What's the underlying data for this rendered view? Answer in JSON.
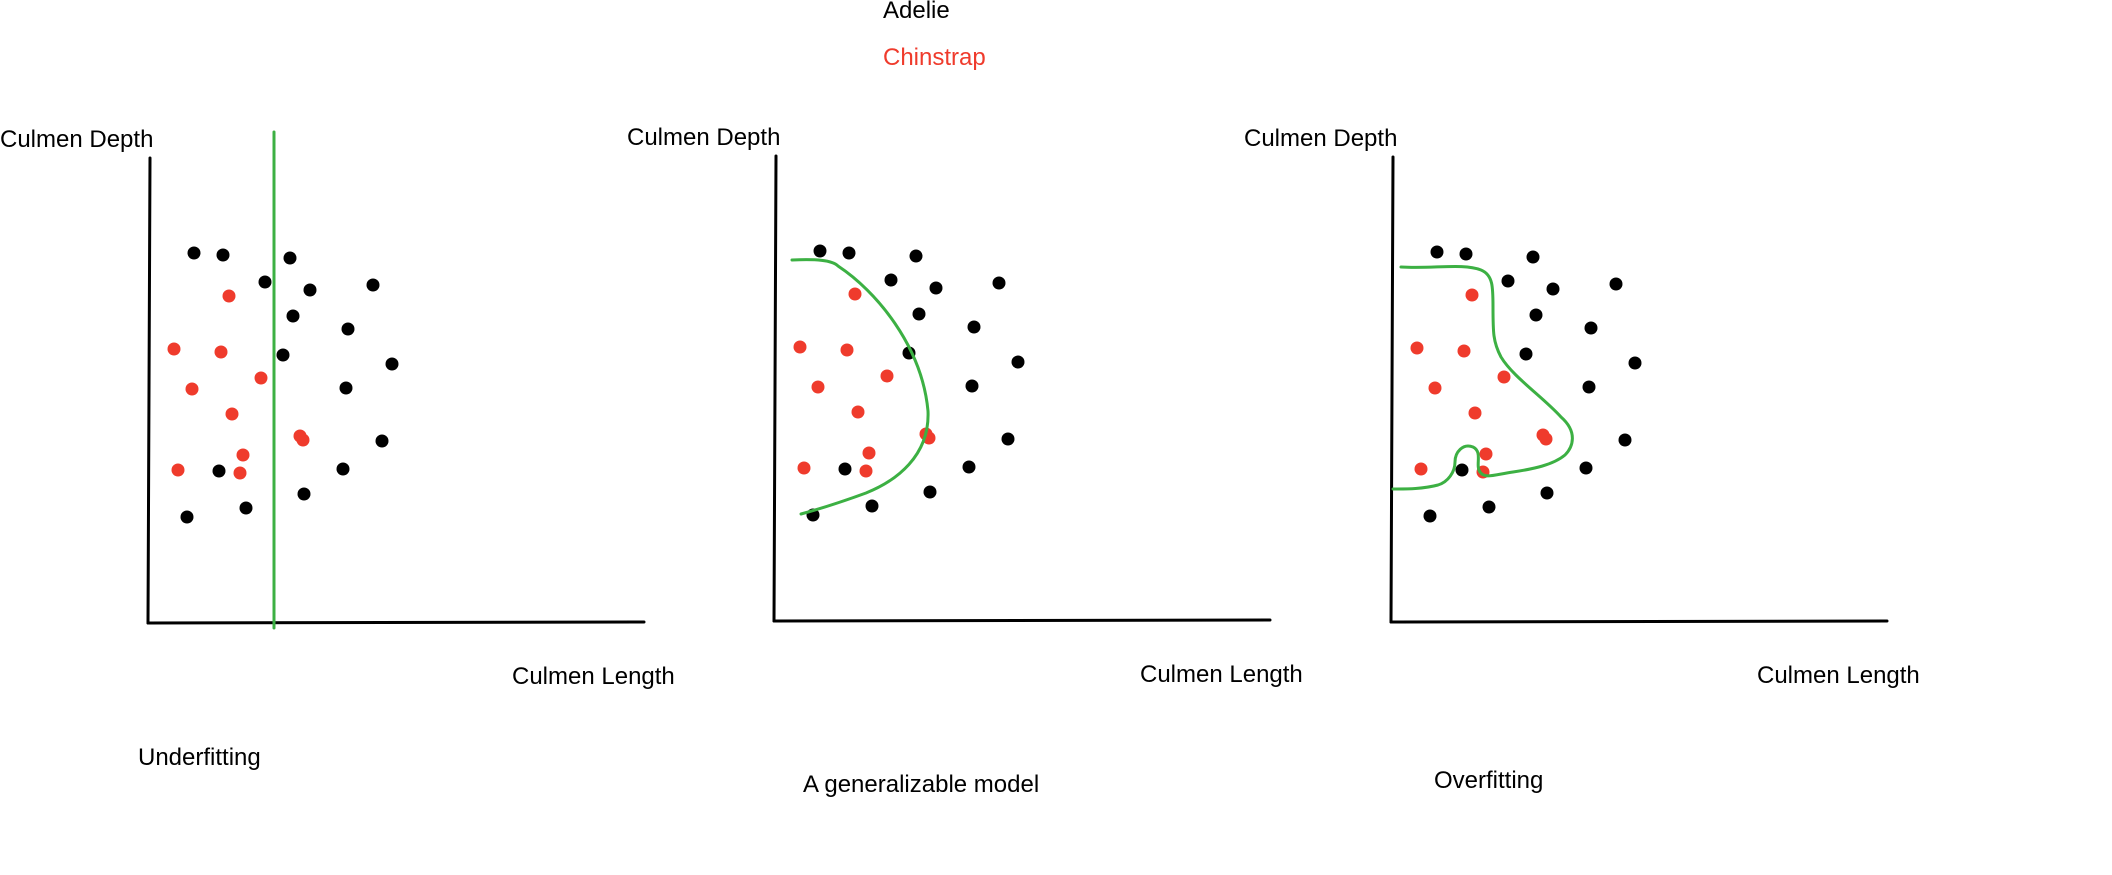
{
  "legend": {
    "items": [
      {
        "label": "Adelie",
        "color": "#000000"
      },
      {
        "label": "Chinstrap",
        "color": "#ef3b2c"
      }
    ]
  },
  "colors": {
    "adelie": "#000000",
    "chinstrap": "#ef3b2c",
    "boundary": "#3cb043",
    "axis": "#000000"
  },
  "panels": [
    {
      "ylabel": "Culmen Depth",
      "xlabel": "Culmen Length",
      "caption": "Underfitting"
    },
    {
      "ylabel": "Culmen Depth",
      "xlabel": "Culmen Length",
      "caption": "A generalizable model"
    },
    {
      "ylabel": "Culmen Depth",
      "xlabel": "Culmen Length",
      "caption": "Overfitting"
    }
  ]
}
